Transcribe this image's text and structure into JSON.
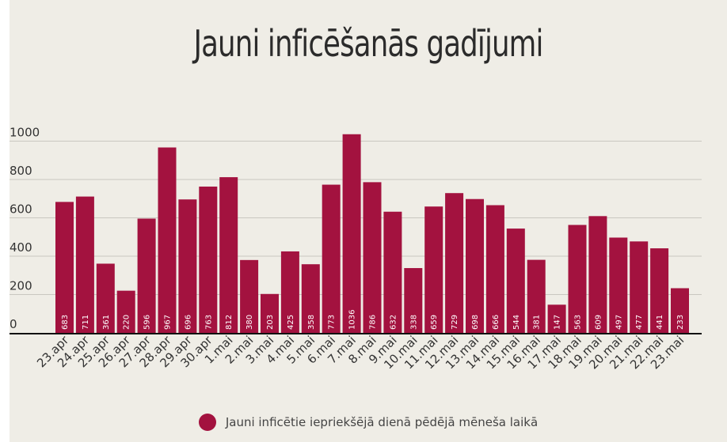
{
  "chart_data": {
    "type": "bar",
    "title": "Jauni inficēšanās gadījumi",
    "categories": [
      "23.apr",
      "24.apr",
      "25.apr",
      "26.apr",
      "27.apr",
      "28.apr",
      "29.apr",
      "30.apr",
      "1.mai",
      "2.mai",
      "3.mai",
      "4.mai",
      "5.mai",
      "6.mai",
      "7.mai",
      "8.mai",
      "9.mai",
      "10.mai",
      "11.mai",
      "12.mai",
      "13.mai",
      "14.mai",
      "15.mai",
      "16.mai",
      "17.mai",
      "18.mai",
      "19.mai",
      "20.mai",
      "21.mai",
      "22.mai",
      "23.mai"
    ],
    "series": [
      {
        "name": "Jauni inficētie iepriekšējā dienā pēdējā mēneša laikā",
        "values": [
          683,
          711,
          361,
          220,
          596,
          967,
          696,
          763,
          812,
          380,
          203,
          425,
          358,
          773,
          1036,
          786,
          632,
          338,
          659,
          729,
          698,
          666,
          544,
          381,
          147,
          563,
          609,
          497,
          477,
          441,
          233
        ]
      }
    ],
    "y_ticks": [
      "0",
      "200",
      "400",
      "600",
      "800",
      "1000"
    ],
    "ylim": [
      0,
      1100
    ],
    "grid": true,
    "legend_position": "bottom",
    "bar_color": "#a3123f"
  }
}
